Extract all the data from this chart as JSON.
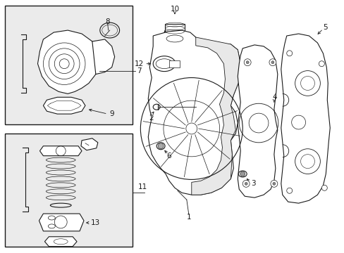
{
  "background_color": "#ffffff",
  "line_color": "#1a1a1a",
  "box_fill": "#ebebeb",
  "label_fs": 7.5,
  "fig_w": 4.89,
  "fig_h": 3.6,
  "dpi": 100
}
